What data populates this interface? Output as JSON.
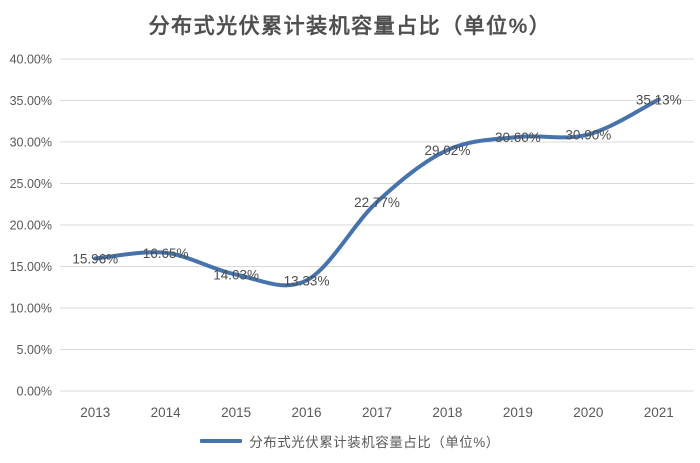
{
  "title": "分布式光伏累计装机容量占比（单位%）",
  "legend": {
    "label": "分布式光伏累计装机容量占比（单位%）"
  },
  "colors": {
    "line": "#4673ab",
    "grid": "#d9d9d9",
    "axis_text": "#595959",
    "data_label_text": "#4d4d4d",
    "title_text": "#4f4f4f",
    "background": "#ffffff"
  },
  "chart_data": {
    "type": "line",
    "title": "分布式光伏累计装机容量占比（单位%）",
    "categories": [
      "2013",
      "2014",
      "2015",
      "2016",
      "2017",
      "2018",
      "2019",
      "2020",
      "2021"
    ],
    "series": [
      {
        "name": "分布式光伏累计装机容量占比（单位%）",
        "values": [
          15.96,
          16.65,
          14.03,
          13.33,
          22.77,
          29.02,
          30.6,
          30.9,
          35.13
        ]
      }
    ],
    "value_labels": [
      "15.96%",
      "16.65%",
      "14.03%",
      "13.33%",
      "22.77%",
      "29.02%",
      "30.60%",
      "30.90%",
      "35.13%"
    ],
    "y_ticks": [
      "40.00%",
      "35.00%",
      "30.00%",
      "25.00%",
      "20.00%",
      "15.00%",
      "10.00%",
      "5.00%",
      "0.00%"
    ],
    "ylim": [
      0,
      40
    ],
    "y_step": 5,
    "xlabel": "",
    "ylabel": "",
    "grid": true,
    "smooth": true,
    "legend_position": "bottom",
    "data_label_position": "center"
  }
}
